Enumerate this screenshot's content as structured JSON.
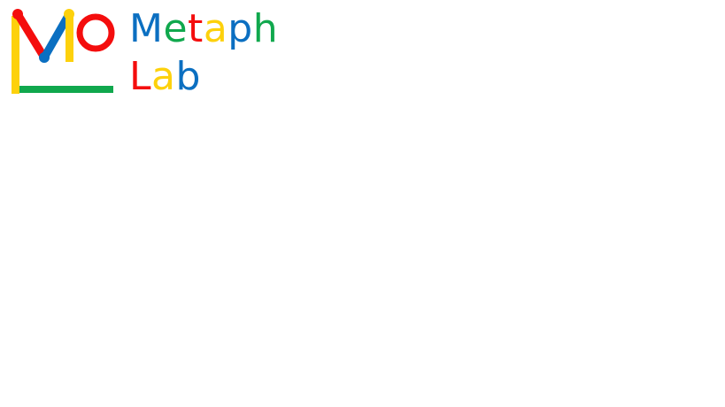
{
  "brand": {
    "line1": [
      "M",
      "e",
      "t",
      "a",
      "p",
      "h"
    ],
    "line2": [
      "L",
      "a",
      "b"
    ]
  },
  "colors": {
    "blue": "#0b6fc1",
    "green": "#10a84d",
    "red": "#f40d0d",
    "yellow": "#fdd10c"
  }
}
